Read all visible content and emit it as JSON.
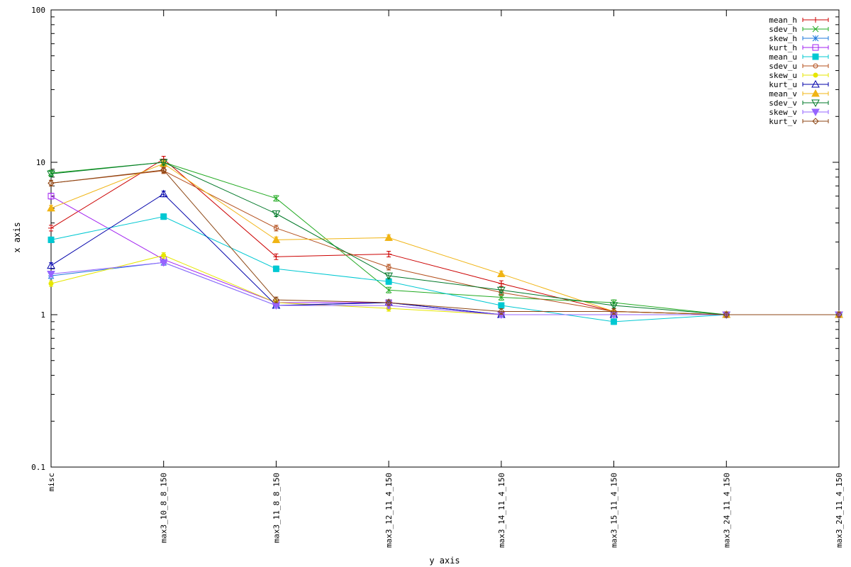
{
  "chart_data": {
    "type": "line",
    "title": "",
    "xlabel": "y axis",
    "ylabel": "x axis",
    "y_scale": "log",
    "ylim": [
      0.1,
      100
    ],
    "y_ticks": [
      {
        "value": 0.1,
        "label": "0.1"
      },
      {
        "value": 1,
        "label": "1"
      },
      {
        "value": 10,
        "label": "10"
      },
      {
        "value": 100,
        "label": "100"
      }
    ],
    "categories": [
      "misc",
      "max3_10_8_8_150",
      "max3_11_8_8_150",
      "max3_12_11_4_150",
      "max3_14_11_4_150",
      "max3_15_11_4_150",
      "max3_24_11_4_150",
      "max3_24_11_4_150"
    ],
    "grid": false,
    "legend_position": "top-right",
    "series": [
      {
        "name": "mean_h",
        "color": "#cc0000",
        "marker": "plus",
        "values": [
          3.7,
          10.5,
          2.4,
          2.5,
          1.6,
          1.05,
          1.0,
          1.0
        ]
      },
      {
        "name": "sdev_h",
        "color": "#22aa22",
        "marker": "cross",
        "values": [
          8.5,
          10.0,
          5.8,
          1.45,
          1.3,
          1.2,
          1.0,
          1.0
        ]
      },
      {
        "name": "skew_h",
        "color": "#1e78dc",
        "marker": "star",
        "values": [
          1.8,
          2.2,
          1.15,
          1.2,
          1.0,
          1.0,
          1.0,
          1.0
        ]
      },
      {
        "name": "kurt_h",
        "color": "#a020f0",
        "marker": "square",
        "values": [
          6.0,
          2.3,
          1.2,
          1.2,
          1.0,
          1.0,
          1.0,
          1.0
        ]
      },
      {
        "name": "mean_u",
        "color": "#00c8d2",
        "marker": "filled-square",
        "values": [
          3.1,
          4.4,
          2.0,
          1.65,
          1.15,
          0.9,
          1.0,
          1.0
        ]
      },
      {
        "name": "sdev_u",
        "color": "#b4501e",
        "marker": "circle",
        "values": [
          7.3,
          8.8,
          3.7,
          2.05,
          1.4,
          1.05,
          1.0,
          1.0
        ]
      },
      {
        "name": "skew_u",
        "color": "#e6e600",
        "marker": "filled-circle",
        "values": [
          1.6,
          2.45,
          1.2,
          1.1,
          1.0,
          1.0,
          1.0,
          1.0
        ]
      },
      {
        "name": "kurt_u",
        "color": "#0000aa",
        "marker": "triangle",
        "values": [
          2.1,
          6.2,
          1.15,
          1.2,
          1.0,
          1.0,
          1.0,
          1.0
        ]
      },
      {
        "name": "mean_v",
        "color": "#f0b414",
        "marker": "filled-triangle",
        "values": [
          5.0,
          9.8,
          3.1,
          3.2,
          1.85,
          1.05,
          1.0,
          1.0
        ]
      },
      {
        "name": "sdev_v",
        "color": "#007828",
        "marker": "inv-triangle",
        "values": [
          8.4,
          10.0,
          4.6,
          1.8,
          1.45,
          1.15,
          1.0,
          1.0
        ]
      },
      {
        "name": "skew_v",
        "color": "#9664ff",
        "marker": "filled-inv-triangle",
        "values": [
          1.85,
          2.2,
          1.15,
          1.15,
          1.0,
          1.0,
          1.0,
          1.0
        ]
      },
      {
        "name": "kurt_v",
        "color": "#8c4614",
        "marker": "diamond",
        "values": [
          7.3,
          8.9,
          1.25,
          1.2,
          1.05,
          1.05,
          1.0,
          1.0
        ]
      }
    ]
  }
}
